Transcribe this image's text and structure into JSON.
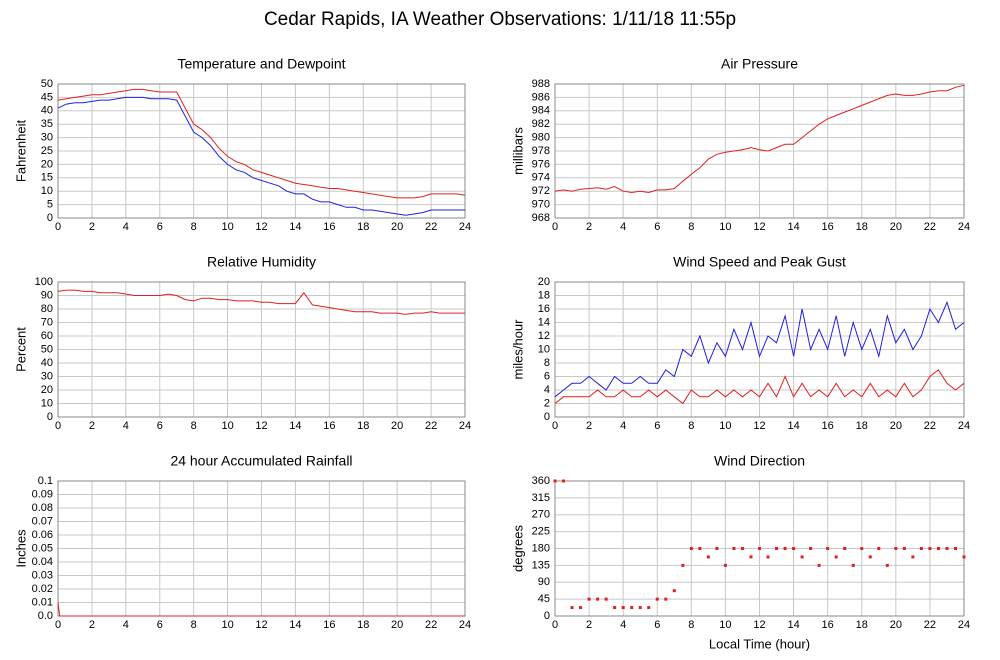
{
  "title": "Cedar Rapids, IA Weather Observations: 1/11/18 11:55p",
  "chart_data": [
    {
      "type": "line",
      "title": "Temperature and Dewpoint",
      "ylabel": "Fahrenheit",
      "x": [
        0,
        0.5,
        1,
        1.5,
        2,
        2.5,
        3,
        3.5,
        4,
        4.5,
        5,
        5.5,
        6,
        6.5,
        7,
        7.5,
        8,
        8.5,
        9,
        9.5,
        10,
        10.5,
        11,
        11.5,
        12,
        12.5,
        13,
        13.5,
        14,
        14.5,
        15,
        15.5,
        16,
        16.5,
        17,
        17.5,
        18,
        18.5,
        19,
        19.5,
        20,
        20.5,
        21,
        21.5,
        22,
        22.5,
        23,
        23.5,
        24
      ],
      "series": [
        {
          "color": "#e02020",
          "values": [
            44,
            44.5,
            45,
            45.5,
            46,
            46,
            46.5,
            47,
            47.5,
            48,
            48,
            47.5,
            47,
            47,
            47,
            41,
            35,
            33,
            30,
            26,
            23,
            21,
            20,
            18,
            17,
            16,
            15,
            14,
            13,
            12.5,
            12,
            11.5,
            11,
            11,
            10.5,
            10,
            9.5,
            9,
            8.5,
            8,
            7.5,
            7.5,
            7.5,
            8,
            9,
            9,
            9,
            9,
            8.5
          ]
        },
        {
          "color": "#2020e0",
          "values": [
            41,
            42.5,
            43,
            43,
            43.5,
            44,
            44,
            44.5,
            45,
            45,
            45,
            44.5,
            44.5,
            44.5,
            44,
            38,
            32,
            30,
            27,
            23,
            20,
            18,
            17,
            15,
            14,
            13,
            12,
            10,
            9,
            9,
            7,
            6,
            6,
            5,
            4,
            4,
            3,
            3,
            2.5,
            2,
            1.5,
            1,
            1.5,
            2,
            3,
            3,
            3,
            3,
            3
          ]
        }
      ],
      "xlim": [
        0,
        24
      ],
      "xticks": [
        0,
        2,
        4,
        6,
        8,
        10,
        12,
        14,
        16,
        18,
        20,
        22,
        24
      ],
      "ylim": [
        0,
        50
      ],
      "yticks": [
        0,
        5,
        10,
        15,
        20,
        25,
        30,
        35,
        40,
        45,
        50
      ],
      "grid": true
    },
    {
      "type": "line",
      "title": "Air Pressure",
      "ylabel": "millibars",
      "x": [
        0,
        0.5,
        1,
        1.5,
        2,
        2.5,
        3,
        3.5,
        4,
        4.5,
        5,
        5.5,
        6,
        6.5,
        7,
        7.5,
        8,
        8.5,
        9,
        9.5,
        10,
        10.5,
        11,
        11.5,
        12,
        12.5,
        13,
        13.5,
        14,
        14.5,
        15,
        15.5,
        16,
        16.5,
        17,
        17.5,
        18,
        18.5,
        19,
        19.5,
        20,
        20.5,
        21,
        21.5,
        22,
        22.5,
        23,
        23.5,
        24
      ],
      "series": [
        {
          "color": "#e02020",
          "values": [
            972,
            972.2,
            972,
            972.3,
            972.4,
            972.5,
            972.3,
            972.7,
            972,
            971.8,
            972,
            971.8,
            972.2,
            972.2,
            972.4,
            973.5,
            974.5,
            975.5,
            976.8,
            977.5,
            977.8,
            978,
            978.2,
            978.5,
            978.2,
            978,
            978.5,
            979,
            979,
            980,
            981,
            982,
            982.8,
            983.3,
            983.8,
            984.3,
            984.8,
            985.3,
            985.8,
            986.3,
            986.5,
            986.3,
            986.3,
            986.5,
            986.8,
            987,
            987,
            987.5,
            987.8
          ]
        }
      ],
      "xlim": [
        0,
        24
      ],
      "xticks": [
        0,
        2,
        4,
        6,
        8,
        10,
        12,
        14,
        16,
        18,
        20,
        22,
        24
      ],
      "ylim": [
        968,
        988
      ],
      "yticks": [
        968,
        970,
        972,
        974,
        976,
        978,
        980,
        982,
        984,
        986,
        988
      ],
      "grid": true
    },
    {
      "type": "line",
      "title": "Relative Humidity",
      "ylabel": "Percent",
      "x": [
        0,
        0.5,
        1,
        1.5,
        2,
        2.5,
        3,
        3.5,
        4,
        4.5,
        5,
        5.5,
        6,
        6.5,
        7,
        7.5,
        8,
        8.5,
        9,
        9.5,
        10,
        10.5,
        11,
        11.5,
        12,
        12.5,
        13,
        13.5,
        14,
        14.5,
        15,
        15.5,
        16,
        16.5,
        17,
        17.5,
        18,
        18.5,
        19,
        19.5,
        20,
        20.5,
        21,
        21.5,
        22,
        22.5,
        23,
        23.5,
        24
      ],
      "series": [
        {
          "color": "#e02020",
          "values": [
            93,
            94,
            94,
            93,
            93,
            92,
            92,
            92,
            91,
            90,
            90,
            90,
            90,
            91,
            90,
            87,
            86,
            88,
            88,
            87,
            87,
            86,
            86,
            86,
            85,
            85,
            84,
            84,
            84,
            92,
            83,
            82,
            81,
            80,
            79,
            78,
            78,
            78,
            77,
            77,
            77,
            76,
            77,
            77,
            78,
            77,
            77,
            77,
            77
          ]
        }
      ],
      "xlim": [
        0,
        24
      ],
      "xticks": [
        0,
        2,
        4,
        6,
        8,
        10,
        12,
        14,
        16,
        18,
        20,
        22,
        24
      ],
      "ylim": [
        0,
        100
      ],
      "yticks": [
        0,
        10,
        20,
        30,
        40,
        50,
        60,
        70,
        80,
        90,
        100
      ],
      "grid": true
    },
    {
      "type": "line",
      "title": "Wind Speed and Peak Gust",
      "ylabel": "miles/hour",
      "x": [
        0,
        0.5,
        1,
        1.5,
        2,
        2.5,
        3,
        3.5,
        4,
        4.5,
        5,
        5.5,
        6,
        6.5,
        7,
        7.5,
        8,
        8.5,
        9,
        9.5,
        10,
        10.5,
        11,
        11.5,
        12,
        12.5,
        13,
        13.5,
        14,
        14.5,
        15,
        15.5,
        16,
        16.5,
        17,
        17.5,
        18,
        18.5,
        19,
        19.5,
        20,
        20.5,
        21,
        21.5,
        22,
        22.5,
        23,
        23.5,
        24
      ],
      "series": [
        {
          "color": "#2020e0",
          "values": [
            3,
            4,
            5,
            5,
            6,
            5,
            4,
            6,
            5,
            5,
            6,
            5,
            5,
            7,
            6,
            10,
            9,
            12,
            8,
            11,
            9,
            13,
            10,
            14,
            9,
            12,
            11,
            15,
            9,
            16,
            10,
            13,
            10,
            15,
            9,
            14,
            10,
            13,
            9,
            15,
            11,
            13,
            10,
            12,
            16,
            14,
            17,
            13,
            14
          ]
        },
        {
          "color": "#e02020",
          "values": [
            2,
            3,
            3,
            3,
            3,
            4,
            3,
            3,
            4,
            3,
            3,
            4,
            3,
            4,
            3,
            2,
            4,
            3,
            3,
            4,
            3,
            4,
            3,
            4,
            3,
            5,
            3,
            6,
            3,
            5,
            3,
            4,
            3,
            5,
            3,
            4,
            3,
            5,
            3,
            4,
            3,
            5,
            3,
            4,
            6,
            7,
            5,
            4,
            5
          ]
        }
      ],
      "xlim": [
        0,
        24
      ],
      "xticks": [
        0,
        2,
        4,
        6,
        8,
        10,
        12,
        14,
        16,
        18,
        20,
        22,
        24
      ],
      "ylim": [
        0,
        20
      ],
      "yticks": [
        0,
        2,
        4,
        6,
        8,
        10,
        12,
        14,
        16,
        18,
        20
      ],
      "grid": true
    },
    {
      "type": "line",
      "title": "24 hour Accumulated Rainfall",
      "ylabel": "Inches",
      "x": [
        0,
        0.1,
        24
      ],
      "series": [
        {
          "color": "#e02020",
          "values": [
            0.01,
            0,
            0
          ]
        }
      ],
      "xlim": [
        0,
        24
      ],
      "xticks": [
        0,
        2,
        4,
        6,
        8,
        10,
        12,
        14,
        16,
        18,
        20,
        22,
        24
      ],
      "ylim": [
        0,
        0.1
      ],
      "yticks": [
        {
          "value": 0,
          "label": "0.0"
        },
        0.01,
        0.02,
        0.03,
        0.04,
        0.05,
        0.06,
        0.07,
        0.08,
        0.09,
        0.1
      ],
      "grid": true
    },
    {
      "type": "scatter",
      "title": "Wind Direction",
      "ylabel": "degrees",
      "xlabel": "Local Time (hour)",
      "x": [
        0,
        0.5,
        1,
        1.5,
        2,
        2.5,
        3,
        3.5,
        4,
        4.5,
        5,
        5.5,
        6,
        6.5,
        7,
        7.5,
        8,
        8.5,
        9,
        9.5,
        10,
        10.5,
        11,
        11.5,
        12,
        12.5,
        13,
        13.5,
        14,
        14.5,
        15,
        15.5,
        16,
        16.5,
        17,
        17.5,
        18,
        18.5,
        19,
        19.5,
        20,
        20.5,
        21,
        21.5,
        22,
        22.5,
        23,
        23.5,
        24
      ],
      "series": [
        {
          "color": "#e02020",
          "values": [
            360,
            360,
            22.5,
            22.5,
            45,
            45,
            45,
            22.5,
            22.5,
            22.5,
            22.5,
            22.5,
            45,
            45,
            67.5,
            135,
            180,
            180,
            157.5,
            180,
            135,
            180,
            180,
            157.5,
            180,
            157.5,
            180,
            180,
            180,
            157.5,
            180,
            135,
            180,
            157.5,
            180,
            135,
            180,
            157.5,
            180,
            135,
            180,
            180,
            157.5,
            180,
            180,
            180,
            180,
            180,
            157.5
          ]
        }
      ],
      "xlim": [
        0,
        24
      ],
      "xticks": [
        0,
        2,
        4,
        6,
        8,
        10,
        12,
        14,
        16,
        18,
        20,
        22,
        24
      ],
      "ylim": [
        0,
        360
      ],
      "yticks": [
        0,
        45,
        90,
        135,
        180,
        225,
        270,
        315,
        360
      ],
      "grid": true
    }
  ]
}
